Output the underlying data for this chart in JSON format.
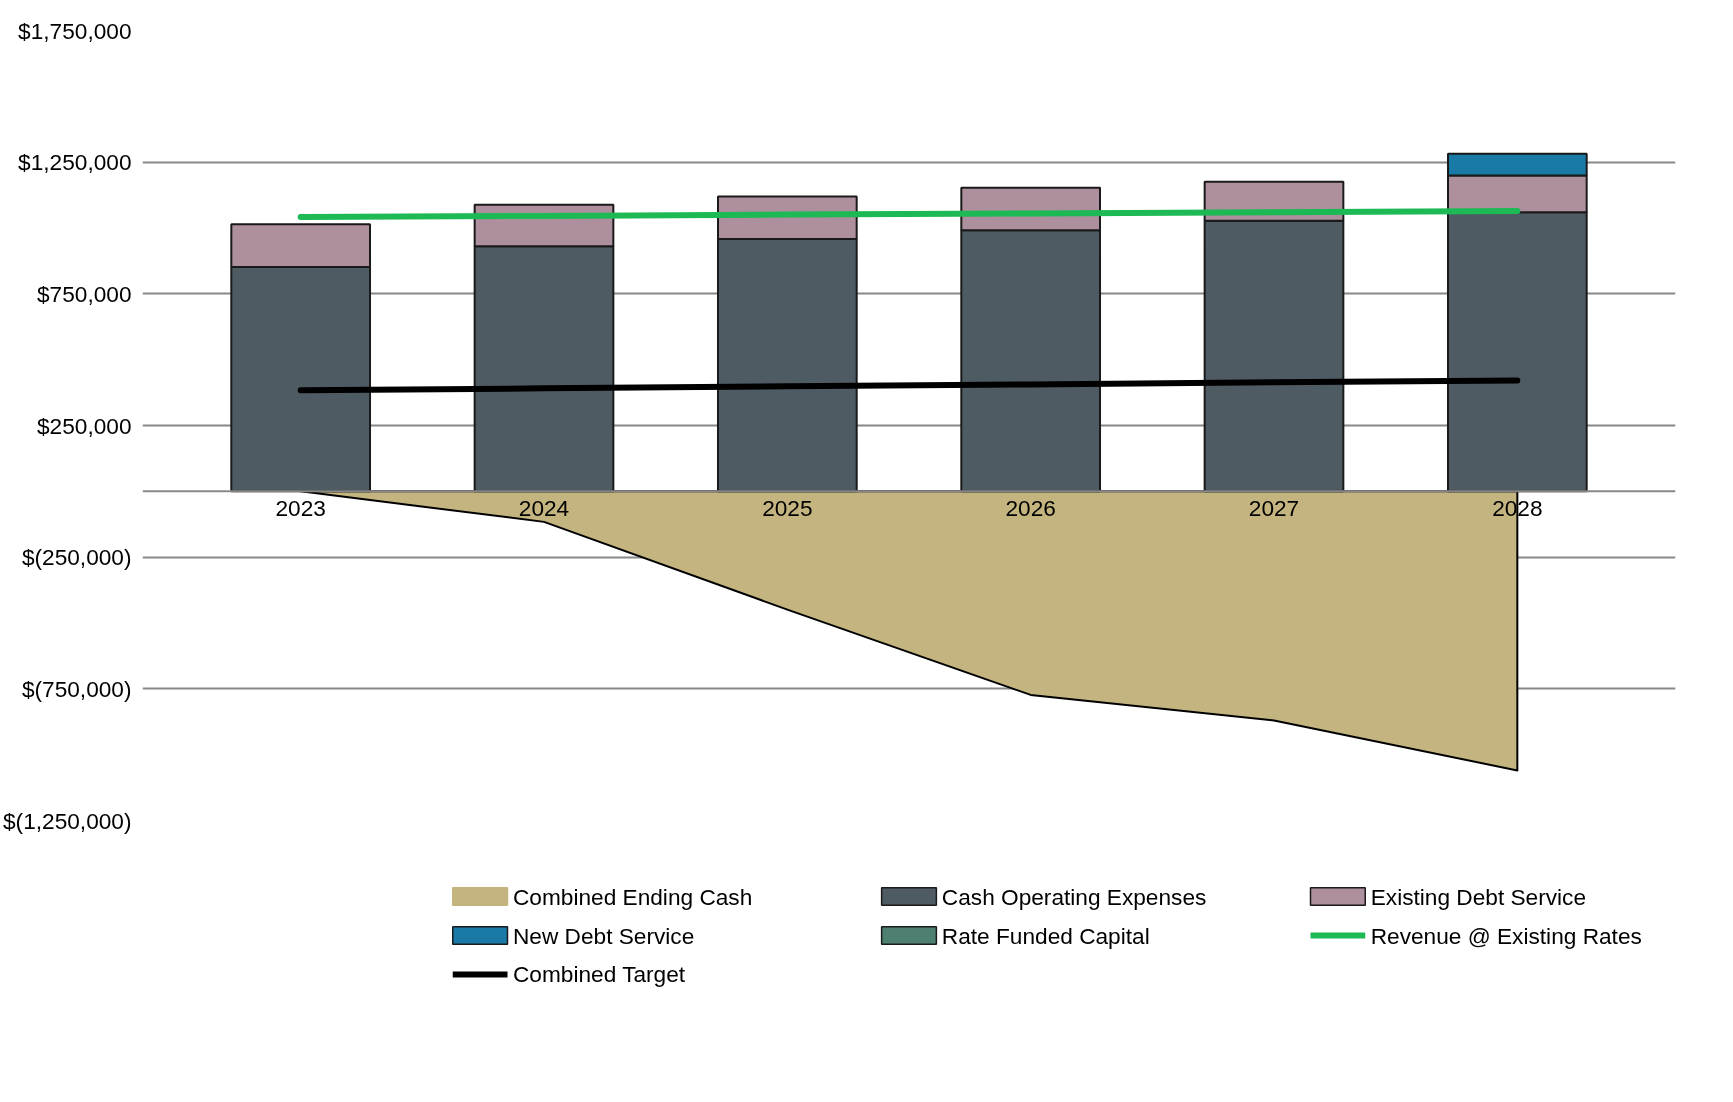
{
  "chart_data": {
    "type": "bar",
    "stacked": true,
    "categories": [
      "2023",
      "2024",
      "2025",
      "2026",
      "2027",
      "2028"
    ],
    "series": [
      {
        "name": "Combined Ending Cash",
        "type": "area",
        "color": "#c4b47f",
        "values": [
          0,
          -116000,
          -449000,
          -773000,
          -870000,
          -1060000
        ]
      },
      {
        "name": "Cash Operating Expenses",
        "color": "#4f5b63",
        "values": [
          852000,
          931000,
          958000,
          991000,
          1028000,
          1060000
        ]
      },
      {
        "name": "Existing Debt Service",
        "color": "#ad8f9d",
        "values": [
          162000,
          157000,
          162000,
          162000,
          148000,
          139000
        ]
      },
      {
        "name": "New Debt Service",
        "color": "#1a7aa6",
        "values": [
          0,
          0,
          0,
          0,
          0,
          83000
        ]
      },
      {
        "name": "Rate Funded Capital",
        "color": "#4e8071",
        "values": [
          0,
          0,
          0,
          0,
          0,
          0
        ]
      },
      {
        "name": "Revenue @ Existing Rates",
        "type": "line",
        "color": "#1db954",
        "values": [
          1042000,
          1046000,
          1051000,
          1055000,
          1060000,
          1065000
        ]
      },
      {
        "name": "Combined Target",
        "type": "line",
        "color": "#000000",
        "values": [
          384000,
          391000,
          399000,
          406000,
          414000,
          421000
        ]
      }
    ],
    "ylim": [
      -1250000,
      1750000
    ],
    "yticks": [
      {
        "value": 1750000,
        "label": "$1,750,000"
      },
      {
        "value": 1250000,
        "label": "$1,250,000"
      },
      {
        "value": 750000,
        "label": "$750,000"
      },
      {
        "value": 250000,
        "label": "$250,000"
      },
      {
        "value": -250000,
        "label": "$(250,000)"
      },
      {
        "value": -750000,
        "label": "$(750,000)"
      },
      {
        "value": -1250000,
        "label": "$(1,250,000)"
      }
    ],
    "grid": "y",
    "legend": "bottom"
  }
}
